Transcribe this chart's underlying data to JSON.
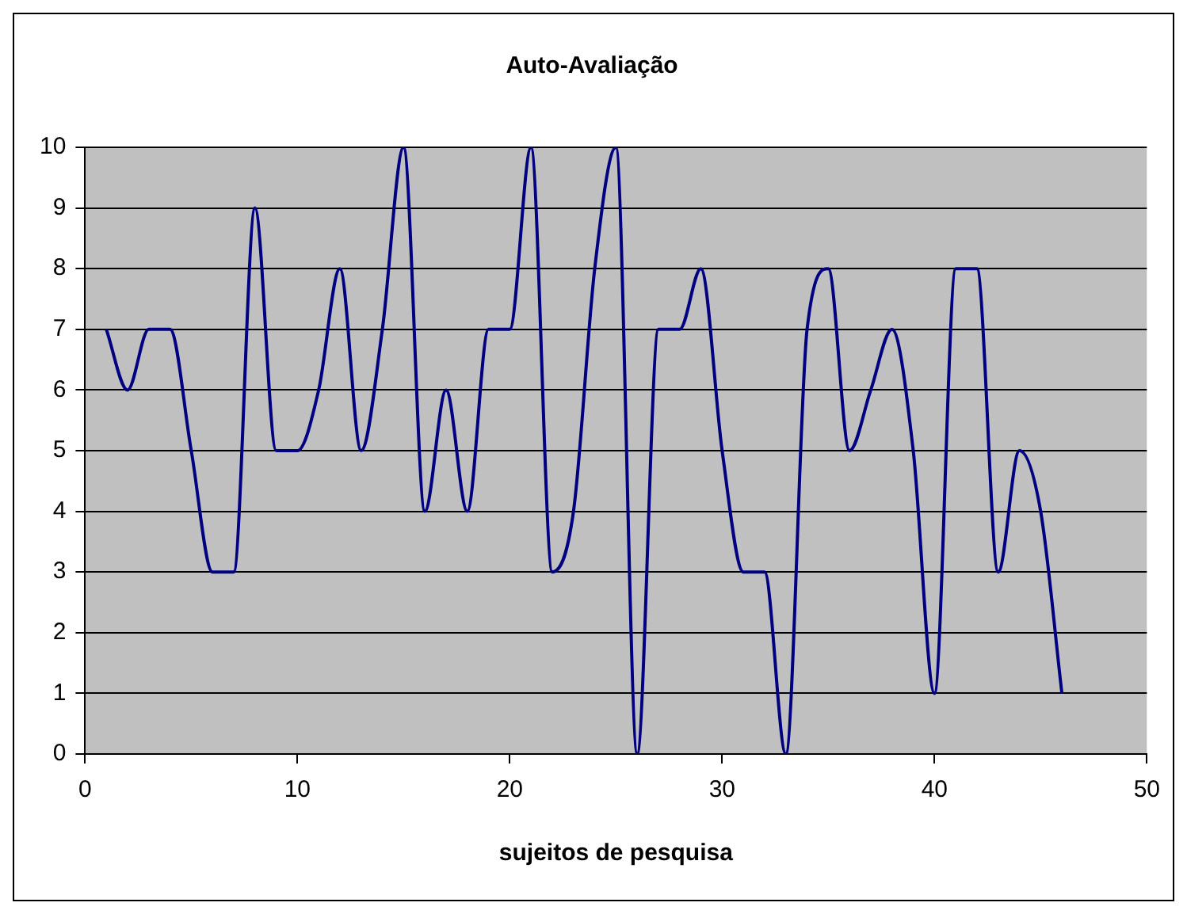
{
  "chart_data": {
    "type": "line",
    "title": "Auto-Avaliação",
    "xlabel": "sujeitos de pesquisa",
    "x": [
      1,
      2,
      3,
      4,
      5,
      6,
      7,
      8,
      9,
      10,
      11,
      12,
      13,
      14,
      15,
      16,
      17,
      18,
      19,
      20,
      21,
      22,
      23,
      24,
      25,
      26,
      27,
      28,
      29,
      30,
      31,
      32,
      33,
      34,
      35,
      36,
      37,
      38,
      39,
      40,
      41,
      42,
      43,
      44,
      45,
      46
    ],
    "series": [
      {
        "color": "#000080",
        "values": [
          7,
          6,
          7,
          7,
          5,
          3,
          3,
          9,
          5,
          5,
          6,
          8,
          5,
          7,
          10,
          4,
          6,
          4,
          7,
          7,
          10,
          3,
          4,
          8,
          10,
          0,
          7,
          7,
          8,
          5,
          3,
          3,
          0,
          7,
          8,
          5,
          6,
          7,
          5,
          1,
          8,
          8,
          3,
          5,
          4,
          1
        ]
      }
    ],
    "xlim": [
      0,
      50
    ],
    "xticks": [
      0,
      10,
      20,
      30,
      40,
      50
    ],
    "ylim": [
      0,
      10
    ],
    "yticks": [
      0,
      1,
      2,
      3,
      4,
      5,
      6,
      7,
      8,
      9,
      10
    ],
    "grid": "y",
    "legend": false,
    "marker": "none",
    "line_style": "solid"
  }
}
